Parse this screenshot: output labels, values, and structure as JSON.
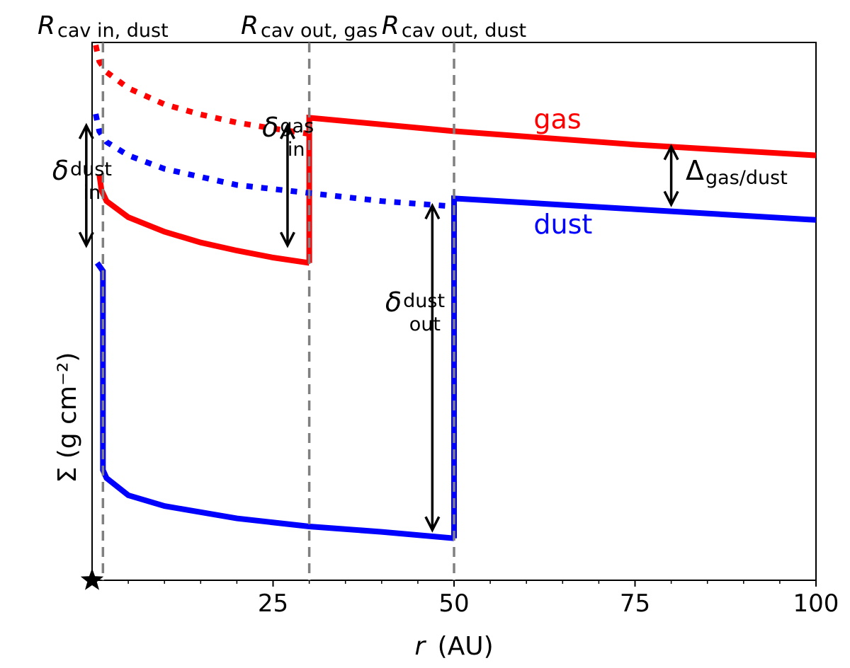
{
  "chart_data": {
    "type": "line",
    "xlabel_symbol": "r",
    "xlabel_unit": "(AU)",
    "ylabel": "Σ (g cm⁻²)",
    "xlim": [
      0,
      100
    ],
    "ylim": [
      0,
      1
    ],
    "xticks": [
      25,
      50,
      75,
      100
    ],
    "x_minor_ticks": [
      5,
      10,
      15,
      20,
      30,
      35,
      40,
      45,
      55,
      60,
      65,
      70,
      80,
      85,
      90,
      95
    ],
    "grid": false,
    "legend": "none",
    "colors": {
      "gas": "#ff0000",
      "dust": "#0000ff",
      "guide": "#808080",
      "arrow": "#000000"
    },
    "series": [
      {
        "name": "gas",
        "color": "#ff0000",
        "segments": [
          {
            "style": "dotted",
            "points": [
              [
                0.5,
                0.995
              ],
              [
                1,
                0.965
              ],
              [
                2,
                0.945
              ],
              [
                5,
                0.915
              ],
              [
                10,
                0.885
              ],
              [
                15,
                0.866
              ],
              [
                20,
                0.851
              ],
              [
                25,
                0.84
              ],
              [
                30,
                0.83
              ]
            ]
          },
          {
            "style": "solid",
            "points": [
              [
                1,
                0.755
              ],
              [
                1.3,
                0.725
              ],
              [
                2,
                0.705
              ],
              [
                5,
                0.675
              ],
              [
                10,
                0.648
              ],
              [
                15,
                0.628
              ],
              [
                20,
                0.613
              ],
              [
                25,
                0.6
              ],
              [
                30,
                0.59
              ]
            ]
          },
          {
            "style": "solid",
            "points": [
              [
                30,
                0.59
              ],
              [
                30,
                0.86
              ],
              [
                50,
                0.835
              ],
              [
                75,
                0.81
              ],
              [
                100,
                0.79
              ]
            ]
          }
        ]
      },
      {
        "name": "dust",
        "color": "#0000ff",
        "segments": [
          {
            "style": "dotted",
            "points": [
              [
                0.5,
                0.867
              ],
              [
                1,
                0.835
              ],
              [
                2,
                0.815
              ],
              [
                5,
                0.79
              ],
              [
                10,
                0.765
              ],
              [
                20,
                0.735
              ],
              [
                30,
                0.72
              ],
              [
                40,
                0.705
              ],
              [
                50,
                0.695
              ]
            ]
          },
          {
            "style": "solid",
            "points": [
              [
                0.7,
                0.59
              ],
              [
                1.5,
                0.575
              ],
              [
                1.5,
                0.205
              ],
              [
                2,
                0.19
              ],
              [
                5,
                0.158
              ],
              [
                10,
                0.138
              ],
              [
                20,
                0.115
              ],
              [
                30,
                0.1
              ],
              [
                40,
                0.09
              ],
              [
                50,
                0.078
              ]
            ]
          },
          {
            "style": "solid",
            "points": [
              [
                50,
                0.078
              ],
              [
                50,
                0.71
              ],
              [
                75,
                0.69
              ],
              [
                100,
                0.67
              ]
            ]
          }
        ]
      }
    ],
    "vlines": [
      {
        "x": 1.5,
        "label_main": "R",
        "label_sub": "cav in, dust"
      },
      {
        "x": 30,
        "label_main": "R",
        "label_sub": "cav out, gas"
      },
      {
        "x": 50,
        "label_main": "R",
        "label_sub": "cav out, dust"
      }
    ],
    "arrows": [
      {
        "x": -0.8,
        "y1": 0.844,
        "y2": 0.624,
        "label_main": "δ",
        "label_sub": "dust",
        "label_below": "in",
        "label_x": -5.5,
        "label_y": 0.745
      },
      {
        "x": 27,
        "y1": 0.844,
        "y2": 0.624,
        "label_main": "δ",
        "label_sub": "gas",
        "label_below": "in",
        "label_x": 23.5,
        "label_y": 0.825
      },
      {
        "x": 47,
        "y1": 0.695,
        "y2": 0.095,
        "label_main": "δ",
        "label_sub": "dust",
        "label_below": "out",
        "label_x": 40.5,
        "label_y": 0.5
      },
      {
        "x": 80,
        "y1": 0.805,
        "y2": 0.7,
        "label_main": "Δ",
        "label_sub": "gas/dust",
        "label_below": "",
        "label_x": 82,
        "label_y": 0.745
      }
    ],
    "annotations": [
      {
        "text": "gas",
        "x": 61,
        "y": 0.84,
        "color": "#ff0000"
      },
      {
        "text": "dust",
        "x": 61,
        "y": 0.645,
        "color": "#0000ff"
      }
    ],
    "origin_marker": "star"
  }
}
